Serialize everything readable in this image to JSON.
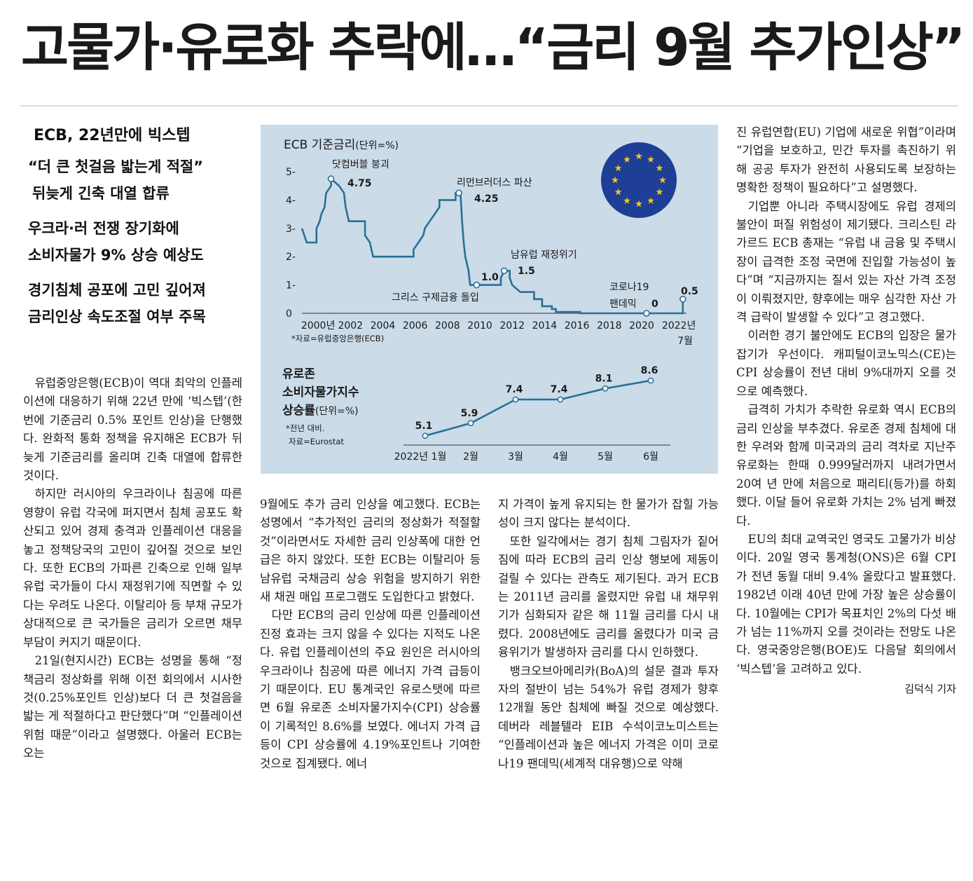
{
  "headline": "고물가·유로화 추락에…“금리 9월 추가인상”",
  "subheads": {
    "main": "ECB, 22년만에 빅스텝",
    "groups": [
      [
        "“더 큰 첫걸음 밟는게 적절”",
        "뒤늦게 긴축 대열 합류"
      ],
      [
        "우크라·러 전쟁 장기화에",
        "소비자물가 9% 상승 예상도"
      ],
      [
        "경기침체 공포에 고민 깊어져",
        "금리인상 속도조절 여부 주목"
      ]
    ]
  },
  "article": {
    "col1": [
      "유럽중앙은행(ECB)이 역대 최악의 인플레이션에 대응하기 위해 22년 만에 ‘빅스텝’(한 번에 기준금리 0.5% 포인트 인상)을 단행했다. 완화적 통화 정책을 유지해온 ECB가 뒤늦게 기준금리를 올리며 긴축 대열에 합류한 것이다.",
      "하지만 러시아의 우크라이나 침공에 따른 영향이 유럽 각국에 퍼지면서 침체 공포도 확산되고 있어 경제 충격과 인플레이션 대응을 놓고 정책당국의 고민이 깊어질 것으로 보인다. 또한 ECB의 가파른 긴축으로 인해 일부 유럽 국가들이 다시 재정위기에 직면할 수 있다는 우려도 나온다. 이탈리아 등 부채 규모가 상대적으로 큰 국가들은 금리가 오르면 채무 부담이 커지기 때문이다.",
      "21일(현지시간) ECB는 성명을 통해 “정책금리 정상화를 위해 이전 회의에서 시사한 것(0.25%포인트 인상)보다 더 큰 첫걸음을 밟는 게 적절하다고 판단했다”며 “인플레이션 위험 때문”이라고 설명했다. 아울러 ECB는 오는"
    ],
    "col2": [
      "9월에도 추가 금리 인상을 예고했다. ECB는 성명에서 “추가적인 금리의 정상화가 적절할 것”이라면서도 자세한 금리 인상폭에 대한 언급은 하지 않았다. 또한 ECB는 이탈리아 등 남유럽 국채금리 상승 위험을 방지하기 위한 새 채권 매입 프로그램도 도입한다고 밝혔다.",
      "다만 ECB의 금리 인상에 따른 인플레이션 진정 효과는 크지 않을 수 있다는 지적도 나온다. 유럽 인플레이션의 주요 원인은 러시아의 우크라이나 침공에 따른 에너지 가격 급등이기 때문이다. EU 통계국인 유로스탯에 따르면 6월 유로존 소비자물가지수(CPI) 상승률이 기록적인 8.6%를 보였다. 에너지 가격 급등이 CPI 상승률에 4.19%포인트나 기여한 것으로 집계됐다. 에너"
    ],
    "col3": [
      "지 가격이 높게 유지되는 한 물가가 잡힐 가능성이 크지 않다는 분석이다.",
      "또한 일각에서는 경기 침체 그림자가 짙어짐에 따라 ECB의 금리 인상 행보에 제동이 걸릴 수 있다는 관측도 제기된다. 과거 ECB는 2011년 금리를 올렸지만 유럽 내 채무위기가 심화되자 같은 해 11월 금리를 다시 내렸다. 2008년에도 금리를 올렸다가 미국 금융위기가 발생하자 금리를 다시 인하했다.",
      "뱅크오브아메리카(BoA)의 설문 결과 투자자의 절반이 넘는 54%가 유럽 경제가 향후 12개월 동안 침체에 빠질 것으로 예상했다. 데버라 레블텔라 EIB 수석이코노미스트는 “인플레이션과 높은 에너지 가격은 이미 코로나19 팬데믹(세계적 대유행)으로 약해"
    ],
    "col4": [
      "진 유럽연합(EU) 기업에 새로운 위협”이라며 “기업을 보호하고, 민간 투자를 촉진하기 위해 공공 투자가 완전히 사용되도록 보장하는 명확한 정책이 필요하다”고 설명했다.",
      "기업뿐 아니라 주택시장에도 유럽 경제의 불안이 퍼질 위험성이 제기됐다. 크리스틴 라가르드 ECB 총재는 “유럽 내 금융 및 주택시장이 급격한 조정 국면에 진입할 가능성이 높다”며 “지금까지는 질서 있는 자산 가격 조정이 이뤄졌지만, 향후에는 매우 심각한 자산 가격 급락이 발생할 수 있다”고 경고했다.",
      "이러한 경기 불안에도 ECB의 입장은 물가 잡기가 우선이다. 캐피털이코노믹스(CE)는 CPI 상승률이 전년 대비 9%대까지 오를 것으로 예측했다.",
      "급격히 가치가 추락한 유로화 역시 ECB의 금리 인상을 부추겼다. 유로존 경제 침체에 대한 우려와 함께 미국과의 금리 격차로 지난주 유로화는 한때 0.999달러까지 내려가면서 20여 년 만에 처음으로 패리티(등가)를 하회했다. 이달 들어 유로화 가치는 2% 넘게 빠졌다.",
      "EU의 최대 교역국인 영국도 고물가가 비상이다. 20일 영국 통계청(ONS)은 6월 CPI가 전년 동월 대비 9.4% 올랐다고 발표했다. 1982년 이래 40년 만에 가장 높은 상승률이다. 10월에는 CPI가 목표치인 2%의 다섯 배가 넘는 11%까지 오를 것이라는 전망도 나온다. 영국중앙은행(BOE)도 다음달 회의에서 ‘빅스텝’을 고려하고 있다."
    ],
    "byline": "김덕식 기자"
  },
  "chart_data": [
    {
      "type": "line",
      "title": "ECB 기준금리",
      "unit": "(단위=%)",
      "source": "*자료=유럽중앙은행(ECB)",
      "xlim": [
        1999,
        2022.6
      ],
      "ylim": [
        0,
        5
      ],
      "yticks": [
        "0",
        "1-",
        "2-",
        "3-",
        "4-",
        "5-"
      ],
      "xticks": [
        {
          "x": 2000,
          "label": "2000년"
        },
        {
          "x": 2002,
          "label": "2002"
        },
        {
          "x": 2004,
          "label": "2004"
        },
        {
          "x": 2006,
          "label": "2006"
        },
        {
          "x": 2008,
          "label": "2008"
        },
        {
          "x": 2010,
          "label": "2010"
        },
        {
          "x": 2012,
          "label": "2012"
        },
        {
          "x": 2014,
          "label": "2014"
        },
        {
          "x": 2016,
          "label": "2016"
        },
        {
          "x": 2018,
          "label": "2018"
        },
        {
          "x": 2020,
          "label": "2020"
        },
        {
          "x": 2022.3,
          "label": "2022년"
        }
      ],
      "xtick_extra": "7월",
      "series": [
        {
          "points": [
            [
              1999.0,
              3.0
            ],
            [
              1999.3,
              2.5
            ],
            [
              1999.9,
              2.5
            ],
            [
              1999.9,
              3.0
            ],
            [
              2000.1,
              3.25
            ],
            [
              2000.2,
              3.5
            ],
            [
              2000.4,
              3.75
            ],
            [
              2000.5,
              4.25
            ],
            [
              2000.8,
              4.5
            ],
            [
              2000.8,
              4.75
            ],
            [
              2001.3,
              4.5
            ],
            [
              2001.6,
              4.25
            ],
            [
              2001.7,
              3.75
            ],
            [
              2001.9,
              3.25
            ],
            [
              2002.9,
              3.25
            ],
            [
              2002.9,
              2.75
            ],
            [
              2003.2,
              2.5
            ],
            [
              2003.4,
              2.0
            ],
            [
              2005.9,
              2.0
            ],
            [
              2005.9,
              2.25
            ],
            [
              2006.2,
              2.5
            ],
            [
              2006.5,
              2.75
            ],
            [
              2006.6,
              3.0
            ],
            [
              2006.9,
              3.25
            ],
            [
              2007.2,
              3.5
            ],
            [
              2007.5,
              3.75
            ],
            [
              2007.5,
              4.0
            ],
            [
              2008.5,
              4.0
            ],
            [
              2008.5,
              4.25
            ],
            [
              2008.8,
              4.25
            ],
            [
              2008.85,
              3.75
            ],
            [
              2008.9,
              3.25
            ],
            [
              2009.0,
              2.5
            ],
            [
              2009.1,
              2.0
            ],
            [
              2009.3,
              1.5
            ],
            [
              2009.35,
              1.25
            ],
            [
              2009.4,
              1.0
            ],
            [
              2011.3,
              1.0
            ],
            [
              2011.3,
              1.25
            ],
            [
              2011.5,
              1.5
            ],
            [
              2011.85,
              1.5
            ],
            [
              2011.85,
              1.25
            ],
            [
              2012.0,
              1.0
            ],
            [
              2012.5,
              0.75
            ],
            [
              2013.35,
              0.75
            ],
            [
              2013.35,
              0.5
            ],
            [
              2013.85,
              0.5
            ],
            [
              2013.85,
              0.25
            ],
            [
              2014.45,
              0.25
            ],
            [
              2014.45,
              0.15
            ],
            [
              2014.7,
              0.15
            ],
            [
              2014.7,
              0.05
            ],
            [
              2016.2,
              0.05
            ],
            [
              2016.2,
              0.0
            ],
            [
              2022.55,
              0.0
            ],
            [
              2022.55,
              0.5
            ]
          ]
        }
      ],
      "annotations": [
        {
          "label": "닷컴버블 붕괴",
          "value": "4.75",
          "x": 2000.8,
          "y": 4.75
        },
        {
          "label": "리먼브러더스 파산",
          "value": "4.25",
          "x": 2008.7,
          "y": 4.25
        },
        {
          "label": "그리스 구제금융 돌입",
          "value": "1.0",
          "x": 2009.8,
          "y": 1.0
        },
        {
          "label": "남유럽 재정위기",
          "value": "1.5",
          "x": 2011.5,
          "y": 1.5
        },
        {
          "label": "코로나19 팬데믹",
          "value": "0",
          "x": 2020.3,
          "y": 0.0
        },
        {
          "label": "",
          "value": "0.5",
          "x": 2022.55,
          "y": 0.5
        }
      ]
    },
    {
      "type": "line",
      "title": [
        "유로존",
        "소비자물가지수",
        "상승률"
      ],
      "unit": "(단위=%)",
      "note": [
        "*전년 대비.",
        "자료=Eurostat"
      ],
      "categories": [
        "2022년 1월",
        "2월",
        "3월",
        "4월",
        "5월",
        "6월"
      ],
      "values": [
        5.1,
        5.9,
        7.4,
        7.4,
        8.1,
        8.6
      ],
      "value_labels": [
        "5.1",
        "5.9",
        "7.4",
        "7.4",
        "8.1",
        "8.6"
      ],
      "ylim": [
        4.6,
        9.0
      ]
    }
  ],
  "colors": {
    "chart_bg": "#cbdbe8",
    "line": "#2a6f96",
    "eu_blue": "#1f3f96",
    "eu_star": "#f3c623"
  }
}
